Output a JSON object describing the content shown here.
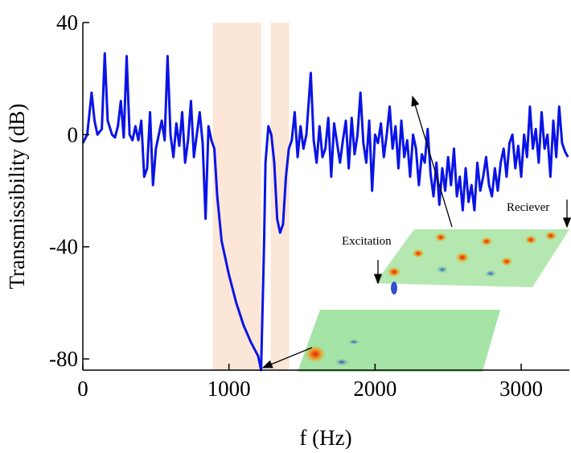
{
  "chart_data": {
    "type": "line",
    "ylabel": "Transmissibility (dB)",
    "xlabel": "f (Hz)",
    "xlim": [
      0,
      3330
    ],
    "ylim": [
      -84,
      40
    ],
    "xticks": [
      0,
      1000,
      2000,
      3000
    ],
    "yticks": [
      -80,
      -40,
      0,
      40
    ],
    "bands": [
      [
        890,
        1220
      ],
      [
        1286,
        1412
      ]
    ],
    "band_color": "#fbe6d8",
    "annotations": [
      "Excitation",
      "Reciever"
    ],
    "x": [
      0,
      30,
      60,
      80,
      100,
      130,
      150,
      170,
      200,
      220,
      240,
      260,
      280,
      300,
      320,
      340,
      360,
      380,
      400,
      420,
      440,
      460,
      480,
      500,
      520,
      540,
      560,
      580,
      600,
      620,
      640,
      660,
      680,
      700,
      720,
      740,
      760,
      780,
      800,
      820,
      840,
      860,
      880,
      900,
      920,
      950,
      1000,
      1050,
      1100,
      1150,
      1200,
      1220,
      1240,
      1250,
      1270,
      1290,
      1310,
      1330,
      1350,
      1370,
      1390,
      1410,
      1430,
      1450,
      1470,
      1490,
      1510,
      1530,
      1560,
      1580,
      1600,
      1620,
      1640,
      1660,
      1680,
      1700,
      1720,
      1740,
      1760,
      1780,
      1800,
      1820,
      1840,
      1860,
      1880,
      1900,
      1920,
      1940,
      1960,
      1980,
      2000,
      2020,
      2040,
      2060,
      2080,
      2100,
      2120,
      2140,
      2160,
      2180,
      2200,
      2220,
      2240,
      2260,
      2280,
      2300,
      2320,
      2340,
      2360,
      2380,
      2400,
      2420,
      2440,
      2460,
      2480,
      2500,
      2520,
      2540,
      2560,
      2580,
      2600,
      2620,
      2640,
      2660,
      2680,
      2700,
      2720,
      2740,
      2760,
      2780,
      2800,
      2820,
      2840,
      2860,
      2880,
      2900,
      2920,
      2940,
      2960,
      2980,
      3000,
      3020,
      3040,
      3060,
      3080,
      3100,
      3120,
      3140,
      3160,
      3180,
      3200,
      3220,
      3240,
      3260,
      3280,
      3300,
      3320
    ],
    "series": [
      {
        "color": "#0a14e6",
        "values": [
          -3,
          0,
          15,
          5,
          0,
          2,
          29,
          5,
          0,
          -1,
          3,
          12,
          -1,
          28,
          0,
          -2,
          3,
          -2,
          5,
          -15,
          -12,
          8,
          -18,
          -5,
          0,
          5,
          -2,
          28,
          0,
          -8,
          4,
          -4,
          8,
          -10,
          -2,
          12,
          -8,
          0,
          8,
          -3,
          -30,
          3,
          -2,
          -5,
          -22,
          -38,
          -50,
          -60,
          -68,
          -74,
          -79,
          -84,
          -40,
          -10,
          3,
          0,
          -10,
          -30,
          -35,
          -32,
          -15,
          -5,
          -2,
          8,
          -8,
          3,
          -5,
          0,
          22,
          -2,
          -10,
          3,
          -8,
          -5,
          6,
          -15,
          4,
          -3,
          -10,
          -2,
          5,
          -12,
          6,
          -7,
          0,
          15,
          -3,
          -10,
          5,
          -20,
          0,
          -3,
          4,
          -8,
          0,
          10,
          -5,
          3,
          -12,
          5,
          -8,
          -2,
          -15,
          0,
          -5,
          -18,
          -7,
          -10,
          2,
          -14,
          -22,
          -10,
          -25,
          -12,
          -20,
          -8,
          -18,
          -5,
          -22,
          -15,
          -27,
          -12,
          -24,
          -18,
          -27,
          -10,
          -20,
          -15,
          -8,
          -18,
          -22,
          -12,
          -20,
          -10,
          -5,
          -15,
          -3,
          0,
          -12,
          -4,
          -15,
          0,
          -8,
          10,
          -5,
          2,
          -10,
          8,
          -5,
          0,
          -15,
          5,
          -8,
          10,
          -3,
          -6,
          -8
        ]
      }
    ]
  }
}
